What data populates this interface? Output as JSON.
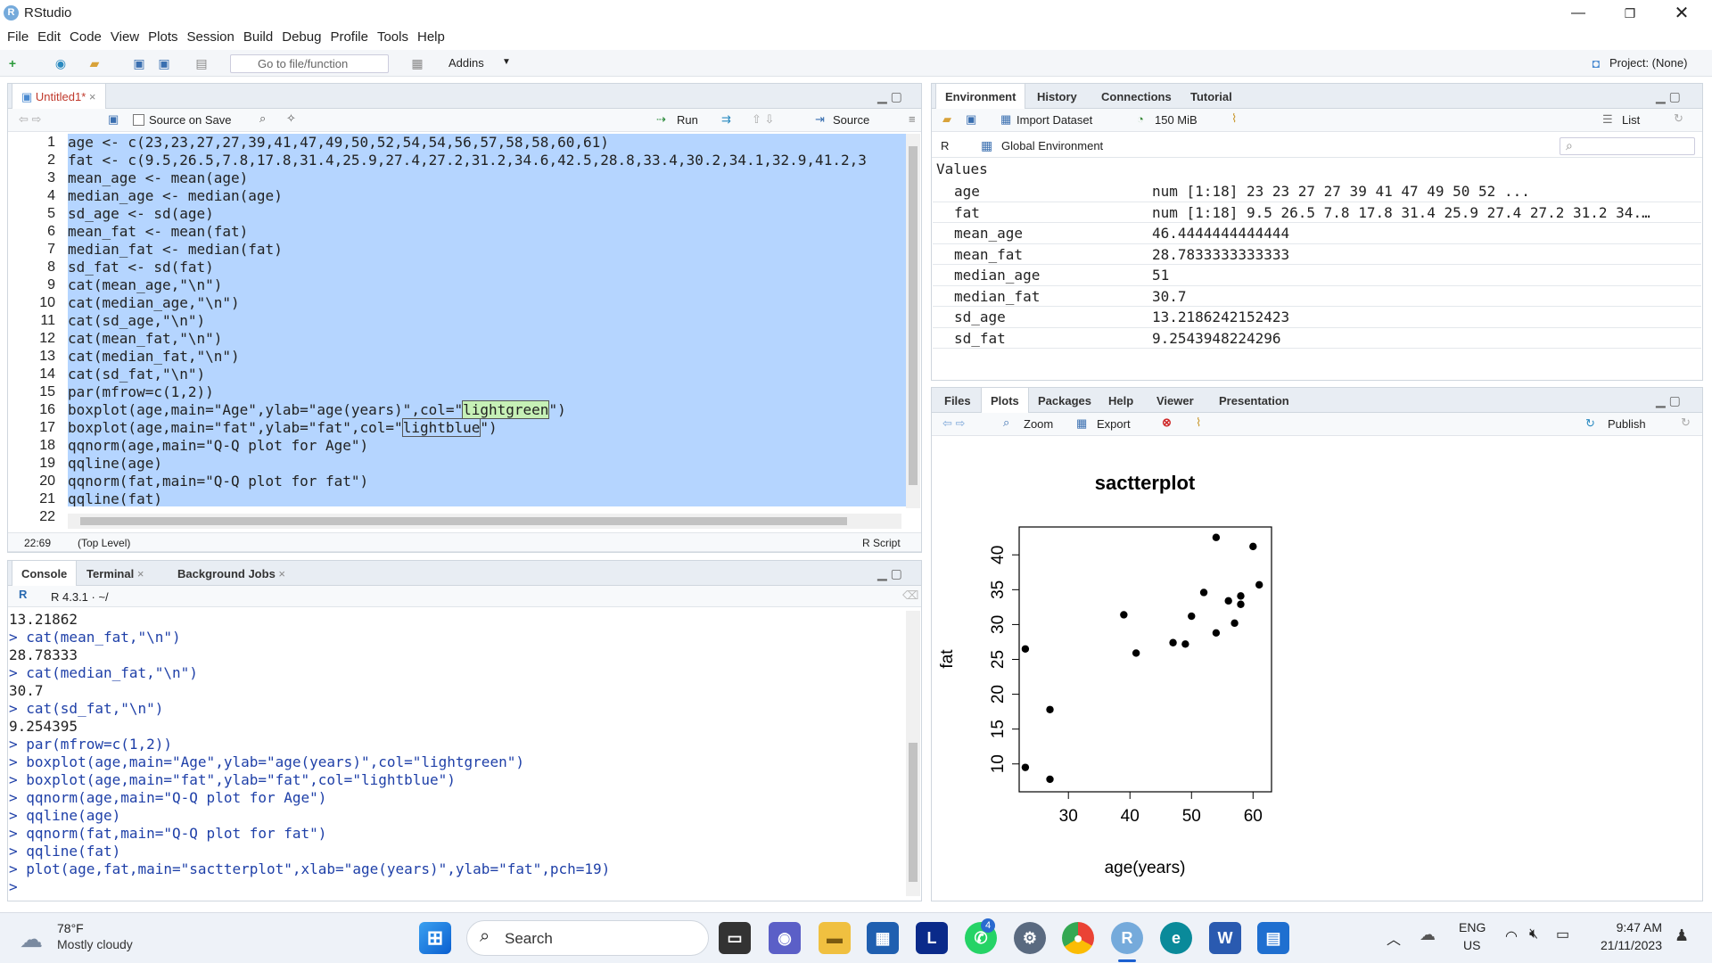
{
  "app": {
    "title": "RStudio",
    "logo": "R"
  },
  "menu": [
    "File",
    "Edit",
    "Code",
    "View",
    "Plots",
    "Session",
    "Build",
    "Debug",
    "Profile",
    "Tools",
    "Help"
  ],
  "toolbar": {
    "goto_placeholder": "Go to file/function",
    "addins": "Addins",
    "project": "Project: (None)"
  },
  "editor": {
    "tab": "Untitled1*",
    "source_on_save": "Source on Save",
    "run": "Run",
    "source": "Source",
    "cursor": "22:69",
    "scope": "(Top Level)",
    "filetype": "R Script",
    "lines": [
      "age <- c(23,23,27,27,39,41,47,49,50,52,54,54,56,57,58,58,60,61)",
      "fat <- c(9.5,26.5,7.8,17.8,31.4,25.9,27.4,27.2,31.2,34.6,42.5,28.8,33.4,30.2,34.1,32.9,41.2,3",
      "mean_age <- mean(age)",
      "median_age <- median(age)",
      "sd_age <- sd(age)",
      "mean_fat <- mean(fat)",
      "median_fat <- median(fat)",
      "sd_fat <- sd(fat)",
      "cat(mean_age,\"\\n\")",
      "cat(median_age,\"\\n\")",
      "cat(sd_age,\"\\n\")",
      "cat(mean_fat,\"\\n\")",
      "cat(median_fat,\"\\n\")",
      "cat(sd_fat,\"\\n\")",
      "par(mfrow=c(1,2))",
      "boxplot(age,main=\"Age\",ylab=\"age(years)\",col=\"",
      "boxplot(age,main=\"fat\",ylab=\"fat\",col=\"",
      "qqnorm(age,main=\"Q-Q plot for Age\")",
      "qqline(age)",
      "qqnorm(fat,main=\"Q-Q plot for fat\")",
      "qqline(fat)",
      "plot(age,fat,main=\"sactterplot\",xlab=\"age(years)\",ylab=\"fat\",pch=19)"
    ],
    "hl16": "lightgreen",
    "tail16": "\")",
    "hl17": "lightblue",
    "tail17": "\")"
  },
  "console": {
    "tabs": [
      "Console",
      "Terminal",
      "Background Jobs"
    ],
    "version": "R 4.3.1 · ~/",
    "lines": [
      {
        "t": "13.21862",
        "c": 0
      },
      {
        "t": "> cat(mean_fat,\"\\n\")",
        "c": 1
      },
      {
        "t": "28.78333",
        "c": 0
      },
      {
        "t": "> cat(median_fat,\"\\n\")",
        "c": 1
      },
      {
        "t": "30.7",
        "c": 0
      },
      {
        "t": "> cat(sd_fat,\"\\n\")",
        "c": 1
      },
      {
        "t": "9.254395",
        "c": 0
      },
      {
        "t": "> par(mfrow=c(1,2))",
        "c": 1
      },
      {
        "t": "> boxplot(age,main=\"Age\",ylab=\"age(years)\",col=\"lightgreen\")",
        "c": 1
      },
      {
        "t": "> boxplot(age,main=\"fat\",ylab=\"fat\",col=\"lightblue\")",
        "c": 1
      },
      {
        "t": "> qqnorm(age,main=\"Q-Q plot for Age\")",
        "c": 1
      },
      {
        "t": "> qqline(age)",
        "c": 1
      },
      {
        "t": "> qqnorm(fat,main=\"Q-Q plot for fat\")",
        "c": 1
      },
      {
        "t": "> qqline(fat)",
        "c": 1
      },
      {
        "t": "> plot(age,fat,main=\"sactterplot\",xlab=\"age(years)\",ylab=\"fat\",pch=19)",
        "c": 1
      },
      {
        "t": "> ",
        "c": 1
      }
    ]
  },
  "env": {
    "tabs": [
      "Environment",
      "History",
      "Connections",
      "Tutorial"
    ],
    "import": "Import Dataset",
    "memory": "150 MiB",
    "list": "List",
    "lang": "R",
    "scope": "Global Environment",
    "section": "Values",
    "rows": [
      {
        "k": "age",
        "v": "num [1:18] 23 23 27 27 39 41 47 49 50 52 ..."
      },
      {
        "k": "fat",
        "v": "num [1:18] 9.5 26.5 7.8 17.8 31.4 25.9 27.4 27.2 31.2 34.…"
      },
      {
        "k": "mean_age",
        "v": "46.4444444444444"
      },
      {
        "k": "mean_fat",
        "v": "28.7833333333333"
      },
      {
        "k": "median_age",
        "v": "51"
      },
      {
        "k": "median_fat",
        "v": "30.7"
      },
      {
        "k": "sd_age",
        "v": "13.2186242152423"
      },
      {
        "k": "sd_fat",
        "v": "9.2543948224296"
      }
    ]
  },
  "files": {
    "tabs": [
      "Files",
      "Plots",
      "Packages",
      "Help",
      "Viewer",
      "Presentation"
    ],
    "zoom": "Zoom",
    "export": "Export",
    "publish": "Publish"
  },
  "chart_data": {
    "type": "scatter",
    "title": "sactterplot",
    "xlabel": "age(years)",
    "ylabel": "fat",
    "xlim": [
      22,
      63
    ],
    "ylim": [
      6,
      44
    ],
    "xticks": [
      30,
      40,
      50,
      60
    ],
    "yticks": [
      10,
      15,
      20,
      25,
      30,
      35,
      40
    ],
    "x": [
      23,
      23,
      27,
      27,
      39,
      41,
      47,
      49,
      50,
      52,
      54,
      54,
      56,
      57,
      58,
      58,
      60,
      61
    ],
    "y": [
      9.5,
      26.5,
      7.8,
      17.8,
      31.4,
      25.9,
      27.4,
      27.2,
      31.2,
      34.6,
      42.5,
      28.8,
      33.4,
      30.2,
      34.1,
      32.9,
      41.2,
      35.7
    ]
  },
  "taskbar": {
    "temp": "78°F",
    "weather": "Mostly cloudy",
    "search": "Search",
    "lang1": "ENG",
    "lang2": "US",
    "time": "9:47 AM",
    "date": "21/11/2023",
    "badge": "4"
  }
}
